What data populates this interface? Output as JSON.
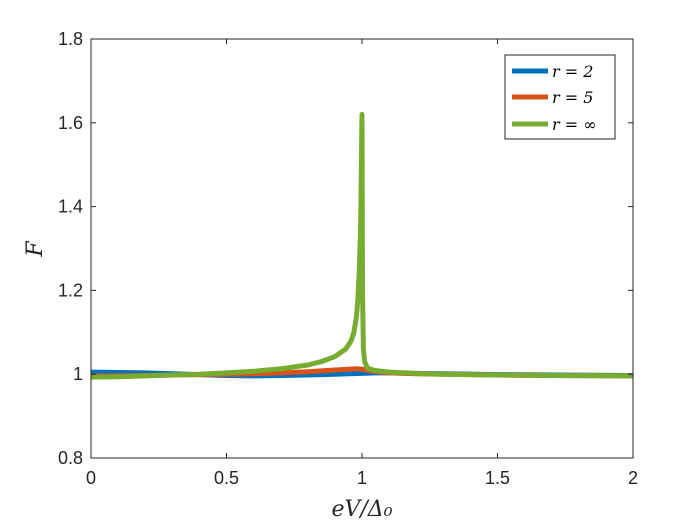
{
  "chart_data": {
    "type": "line",
    "xlabel": "eV/Δ₀",
    "ylabel": "F",
    "xlim": [
      0,
      2
    ],
    "ylim": [
      0.8,
      1.8
    ],
    "xticks": [
      0,
      0.5,
      1,
      1.5,
      2
    ],
    "xtick_labels": [
      "0",
      "0.5",
      "1",
      "1.5",
      "2"
    ],
    "yticks": [
      0.8,
      1,
      1.2,
      1.4,
      1.6,
      1.8
    ],
    "ytick_labels": [
      "0.8",
      "1",
      "1.2",
      "1.4",
      "1.6",
      "1.8"
    ],
    "grid": false,
    "legend_position": "top-right",
    "series": [
      {
        "name": "r = 2",
        "color": "#0072BD",
        "x": [
          0,
          0.1,
          0.2,
          0.3,
          0.4,
          0.5,
          0.6,
          0.7,
          0.8,
          0.9,
          0.95,
          1.0,
          1.05,
          1.1,
          1.2,
          1.3,
          1.5,
          1.7,
          2.0
        ],
        "y": [
          1.005,
          1.004,
          1.003,
          1.001,
          0.999,
          0.997,
          0.996,
          0.997,
          0.998,
          1.0,
          1.001,
          1.002,
          1.003,
          1.003,
          1.002,
          1.001,
          0.999,
          0.998,
          0.997
        ]
      },
      {
        "name": "r = 5",
        "color": "#D95319",
        "x": [
          0,
          0.1,
          0.2,
          0.3,
          0.4,
          0.5,
          0.6,
          0.7,
          0.8,
          0.9,
          0.95,
          0.98,
          1.0,
          1.03,
          1.07,
          1.1,
          1.2,
          1.3,
          1.5,
          1.7,
          2.0
        ],
        "y": [
          0.995,
          0.996,
          0.997,
          0.998,
          0.999,
          1.0,
          1.001,
          1.003,
          1.006,
          1.01,
          1.012,
          1.013,
          1.012,
          1.008,
          1.005,
          1.003,
          1.001,
          1.0,
          0.998,
          0.997,
          0.996
        ]
      },
      {
        "name": "r = ∞",
        "color": "#77AC30",
        "x": [
          0,
          0.1,
          0.2,
          0.3,
          0.4,
          0.5,
          0.6,
          0.7,
          0.8,
          0.85,
          0.9,
          0.94,
          0.96,
          0.97,
          0.98,
          0.985,
          0.99,
          0.995,
          1.0,
          1.0,
          1.002,
          1.005,
          1.01,
          1.02,
          1.04,
          1.07,
          1.1,
          1.2,
          1.3,
          1.5,
          1.7,
          2.0
        ],
        "y": [
          0.993,
          0.994,
          0.996,
          0.998,
          1.0,
          1.003,
          1.007,
          1.013,
          1.022,
          1.03,
          1.042,
          1.06,
          1.08,
          1.1,
          1.14,
          1.18,
          1.25,
          1.35,
          1.62,
          1.62,
          1.2,
          1.06,
          1.03,
          1.015,
          1.01,
          1.007,
          1.005,
          1.002,
          1.0,
          0.998,
          0.997,
          0.996
        ]
      }
    ]
  }
}
